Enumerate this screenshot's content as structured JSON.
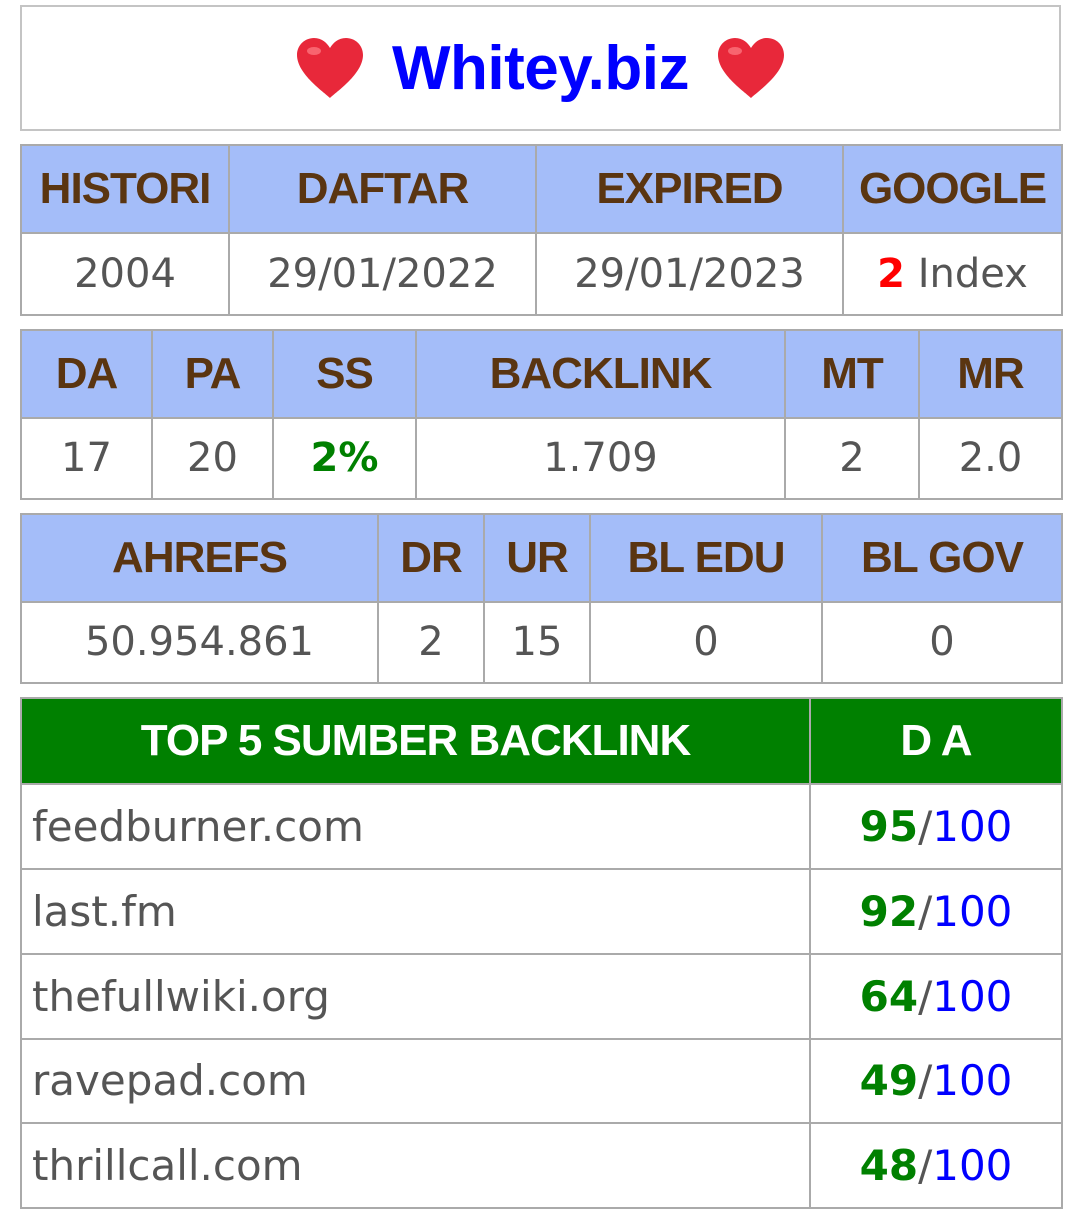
{
  "site": {
    "title": "Whitey.biz",
    "heart_color": "#e8283a"
  },
  "info_table": {
    "headers": [
      "HISTORI",
      "DAFTAR",
      "EXPIRED",
      "GOOGLE"
    ],
    "values": {
      "histori": "2004",
      "daftar": "29/01/2022",
      "expired": "29/01/2023",
      "google_count": "2",
      "google_suffix": " Index"
    }
  },
  "moz_table": {
    "headers": [
      "DA",
      "PA",
      "SS",
      "BACKLINK",
      "MT",
      "MR"
    ],
    "values": [
      "17",
      "20",
      "2%",
      "1.709",
      "2",
      "2.0"
    ]
  },
  "ahrefs_table": {
    "headers": [
      "AHREFS",
      "DR",
      "UR",
      "BL EDU",
      "BL GOV"
    ],
    "values": [
      "50.954.861",
      "2",
      "15",
      "0",
      "0"
    ]
  },
  "backlink_table": {
    "header_source": "TOP 5 SUMBER BACKLINK",
    "header_da": "D A",
    "max_label": "100",
    "separator": "/",
    "rows": [
      {
        "site": "feedburner.com",
        "da": "95"
      },
      {
        "site": "last.fm",
        "da": "92"
      },
      {
        "site": "thefullwiki.org",
        "da": "64"
      },
      {
        "site": "ravepad.com",
        "da": "49"
      },
      {
        "site": "thrillcall.com",
        "da": "48"
      }
    ]
  },
  "colors": {
    "header_blue": "#a4bdf9",
    "header_text_brown": "#5a3511",
    "header_green": "#008000",
    "title_blue": "#0000ff",
    "score_green": "#008000",
    "index_red": "#ff0000"
  }
}
